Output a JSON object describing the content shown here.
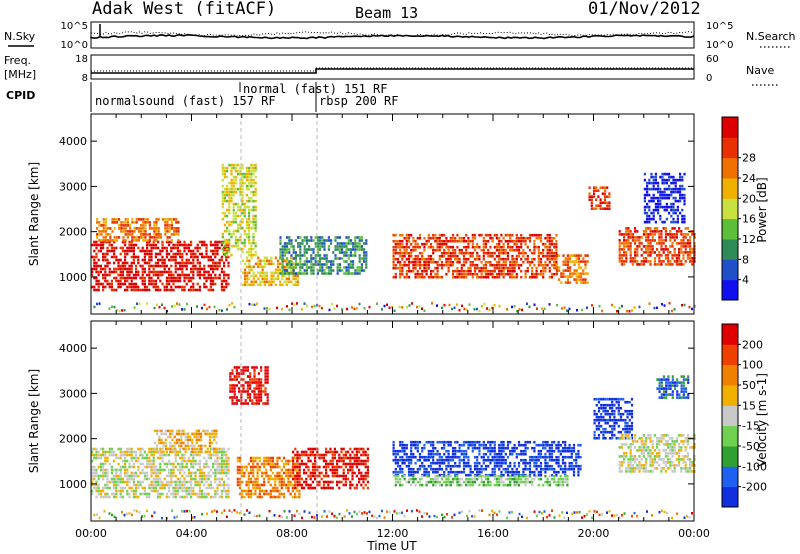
{
  "header": {
    "station": "Adak West (fitACF)",
    "beam": "Beam 13",
    "date": "01/Nov/2012"
  },
  "params": {
    "nsky_label": "N.Sky",
    "nsearch_label": "N.Search",
    "freq_label_top": "Freq.",
    "freq_label_bottom": "[MHz]",
    "nave_label": "Nave",
    "cpid_label": "CPID",
    "nsky_ticks": [
      "10^5",
      "10^0"
    ],
    "nsearch_ticks": [
      "10^5",
      "10^0"
    ],
    "freq_ticks": [
      "18",
      "8"
    ],
    "nave_ticks": [
      "60",
      "0"
    ],
    "cpid_segments": [
      {
        "text": "normalsound (fast) 157 RF"
      },
      {
        "text": "normal (fast) 151 RF"
      },
      {
        "text": "rbsp 200 RF"
      }
    ]
  },
  "chart_data": [
    {
      "type": "heatmap",
      "panel": "power",
      "ylabel": "Slant Range [km]",
      "yticks": [
        "1000",
        "2000",
        "3000",
        "4000"
      ],
      "ylim": [
        180,
        4600
      ],
      "xlim_hours": [
        0,
        24
      ],
      "colorbar": {
        "label": "Power [dB]",
        "ticks": [
          "4",
          "8",
          "12",
          "16",
          "20",
          "24",
          "28"
        ],
        "colors": [
          "#1010ee",
          "#2050c8",
          "#2e8b57",
          "#5cbf3a",
          "#c8e040",
          "#f0b000",
          "#f07000",
          "#e83000",
          "#dd0000"
        ]
      },
      "regions": [
        {
          "t0": 0.0,
          "t1": 5.5,
          "r0": 700,
          "r1": 1800,
          "level": 8
        },
        {
          "t0": 0.2,
          "t1": 3.5,
          "r0": 1800,
          "r1": 2300,
          "level": 6
        },
        {
          "t0": 5.2,
          "t1": 6.6,
          "r0": 1500,
          "r1": 3500,
          "level": 4
        },
        {
          "t0": 6.0,
          "t1": 8.2,
          "r0": 850,
          "r1": 1450,
          "level": 5
        },
        {
          "t0": 7.5,
          "t1": 11.0,
          "r0": 1100,
          "r1": 1900,
          "level": 2
        },
        {
          "t0": 12.0,
          "t1": 18.5,
          "r0": 1000,
          "r1": 1950,
          "level": 7
        },
        {
          "t0": 18.5,
          "t1": 19.8,
          "r0": 900,
          "r1": 1500,
          "level": 6
        },
        {
          "t0": 19.8,
          "t1": 20.6,
          "r0": 2500,
          "r1": 3000,
          "level": 7
        },
        {
          "t0": 21.0,
          "t1": 24.0,
          "r0": 1300,
          "r1": 2100,
          "level": 7
        },
        {
          "t0": 22.0,
          "t1": 23.6,
          "r0": 2200,
          "r1": 3300,
          "level": 0
        }
      ]
    },
    {
      "type": "heatmap",
      "panel": "velocity",
      "ylabel": "Slant Range [km]",
      "xlabel": "Time UT",
      "xticks": [
        "00:00",
        "04:00",
        "08:00",
        "12:00",
        "16:00",
        "20:00",
        "00:00"
      ],
      "yticks": [
        "1000",
        "2000",
        "3000",
        "4000"
      ],
      "ylim": [
        180,
        4600
      ],
      "xlim_hours": [
        0,
        24
      ],
      "colorbar": {
        "label": "Velocity [m s-1]",
        "ticks": [
          "200",
          "100",
          "50",
          "15",
          "-15",
          "-50",
          "-100",
          "-200"
        ],
        "colors": [
          "#1030e0",
          "#2060f0",
          "#30a030",
          "#70d050",
          "#c8c8c8",
          "#f0b000",
          "#f08000",
          "#f04000",
          "#e00000"
        ]
      },
      "regions": [
        {
          "t0": 0.0,
          "t1": 5.5,
          "r0": 700,
          "r1": 1800,
          "level": 4
        },
        {
          "t0": 2.5,
          "t1": 5.0,
          "r0": 1700,
          "r1": 2200,
          "level": 5
        },
        {
          "t0": 5.8,
          "t1": 8.3,
          "r0": 700,
          "r1": 1600,
          "level": 6
        },
        {
          "t0": 8.0,
          "t1": 11.0,
          "r0": 900,
          "r1": 1800,
          "level": 8
        },
        {
          "t0": 5.5,
          "t1": 7.0,
          "r0": 2800,
          "r1": 3600,
          "level": 8
        },
        {
          "t0": 12.0,
          "t1": 19.5,
          "r0": 1200,
          "r1": 1950,
          "level": 0
        },
        {
          "t0": 12.0,
          "t1": 19.0,
          "r0": 1000,
          "r1": 1200,
          "level": 3
        },
        {
          "t0": 20.0,
          "t1": 21.5,
          "r0": 2000,
          "r1": 2900,
          "level": 0
        },
        {
          "t0": 21.0,
          "t1": 24.0,
          "r0": 1300,
          "r1": 2100,
          "level": 4
        },
        {
          "t0": 22.5,
          "t1": 23.8,
          "r0": 2900,
          "r1": 3400,
          "level": 1
        }
      ]
    }
  ]
}
